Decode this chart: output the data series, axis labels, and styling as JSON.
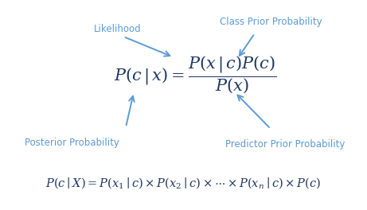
{
  "background_color": "#ffffff",
  "arrow_color": "#5B9BD5",
  "label_color": "#5B9BD5",
  "formula_color": "#1F3864",
  "bottom_formula_color": "#1F3864",
  "labels": {
    "likelihood": "Likelihood",
    "class_prior": "Class Prior Probability",
    "posterior": "Posterior Probability",
    "predictor": "Predictor Prior Probability"
  },
  "figsize": [
    4.61,
    2.64
  ],
  "dpi": 100
}
